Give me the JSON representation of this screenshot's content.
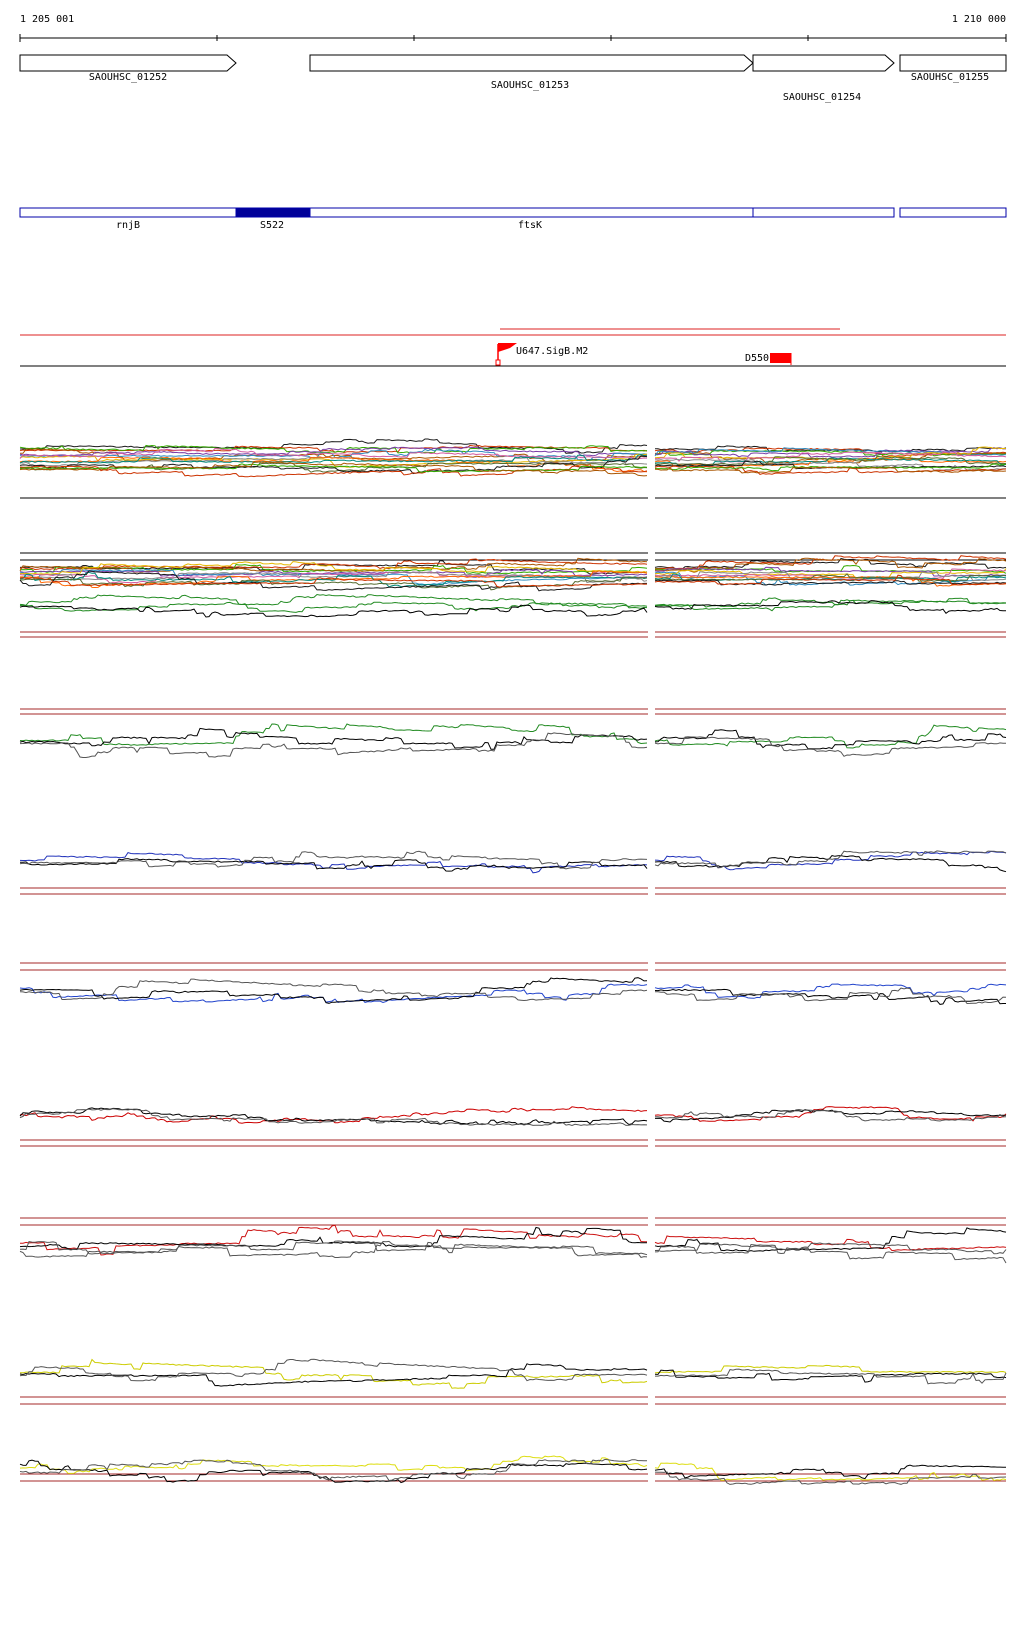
{
  "coordinates": {
    "start_label": "1 205 001",
    "end_label": "1 210 000"
  },
  "genes": [
    {
      "name": "SAOUHSC_01252"
    },
    {
      "name": "SAOUHSC_01253"
    },
    {
      "name": "SAOUHSC_01254"
    },
    {
      "name": "SAOUHSC_01255"
    }
  ],
  "transcripts": [
    {
      "name": "rnjB"
    },
    {
      "name": "S522"
    },
    {
      "name": "ftsK"
    }
  ],
  "features": [
    {
      "name": "U647.SigB.M2",
      "color": "#ff0000"
    },
    {
      "name": "D550",
      "color": "#ff0000"
    }
  ],
  "colors": {
    "gene_outline": "#000000",
    "transcript_outline": "#0000aa",
    "transcript_fill": "#000099",
    "feature_line": "#dd2222",
    "threshold_line": "#a52a2a",
    "expression_palette": [
      "#1a1a1a",
      "#cc3300",
      "#33aa00",
      "#aa5500",
      "#7a3da8",
      "#2e8bc0",
      "#e6b800",
      "#d25aa0",
      "#888888",
      "#ff6600",
      "#00897b",
      "#556b2f"
    ]
  },
  "tracks": [
    {
      "id": "multi-1",
      "style": "multi"
    },
    {
      "id": "multi-2",
      "style": "multi"
    },
    {
      "id": "green",
      "style": "pair",
      "color": "#228b22"
    },
    {
      "id": "blue-1",
      "style": "pair",
      "color": "#2233bb"
    },
    {
      "id": "blue-2",
      "style": "pair",
      "color": "#2244cc"
    },
    {
      "id": "red-1",
      "style": "pair",
      "color": "#cc0000"
    },
    {
      "id": "red-2",
      "style": "pair",
      "color": "#cc1111"
    },
    {
      "id": "yellow-1",
      "style": "pair",
      "color": "#cccc00"
    },
    {
      "id": "yellow-2",
      "style": "pair",
      "color": "#dddd11"
    }
  ]
}
